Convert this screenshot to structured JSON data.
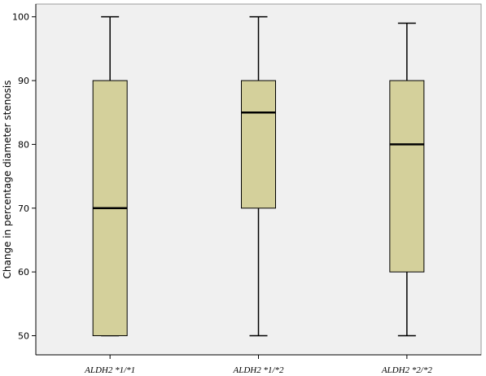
{
  "chart_data": {
    "type": "box",
    "ylabel": "Change in percentage diameter stenosis",
    "xlabel": "",
    "ylim": [
      47,
      102
    ],
    "yticks": [
      50,
      60,
      70,
      80,
      90,
      100
    ],
    "grid": false,
    "categories": [
      "ALDH2 *1/*1",
      "ALDH2 *1/*2",
      "ALDH2 *2/*2"
    ],
    "boxes": [
      {
        "min": 50,
        "q1": 50,
        "median": 70,
        "q3": 90,
        "max": 100
      },
      {
        "min": 50,
        "q1": 70,
        "median": 85,
        "q3": 90,
        "max": 100
      },
      {
        "min": 50,
        "q1": 60,
        "median": 80,
        "q3": 90,
        "max": 99
      }
    ],
    "colors": {
      "box_fill": "#d4d09b",
      "plot_background": "#f0f0f0",
      "line": "#000000"
    }
  }
}
